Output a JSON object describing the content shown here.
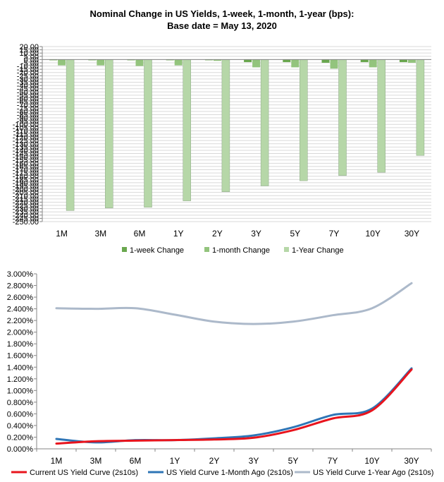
{
  "chart_data": [
    {
      "type": "bar",
      "title": "Nominal Change in US Yields, 1-week, 1-month, 1-year (bps):",
      "subtitle": "Base date = May 13, 2020",
      "categories": [
        "1M",
        "3M",
        "6M",
        "1Y",
        "2Y",
        "3Y",
        "5Y",
        "7Y",
        "10Y",
        "30Y"
      ],
      "ylim": [
        -250,
        20
      ],
      "ytick_step": 5,
      "ytick_format": "fixed2",
      "grid": true,
      "legend_position": "bottom",
      "series": [
        {
          "name": "1-week Change",
          "color": "#6aa84f",
          "values": [
            -1,
            -1,
            -1,
            -1,
            -1,
            -4,
            -4,
            -5,
            -4,
            -4
          ]
        },
        {
          "name": "1-month Change",
          "color": "#93c47d",
          "values": [
            -9,
            -9,
            -10,
            -9,
            -2,
            -12,
            -12,
            -14,
            -12,
            -5
          ]
        },
        {
          "name": "1-Year Change",
          "color": "#b6d7a8",
          "values": [
            -233,
            -229,
            -228,
            -218,
            -204,
            -195,
            -187,
            -179,
            -174,
            -148
          ]
        }
      ]
    },
    {
      "type": "line",
      "categories": [
        "1M",
        "3M",
        "6M",
        "1Y",
        "2Y",
        "3Y",
        "5Y",
        "7Y",
        "10Y",
        "30Y"
      ],
      "ylim": [
        0,
        3.0
      ],
      "ytick_step": 0.2,
      "ytick_format": "percent3",
      "grid": false,
      "legend_position": "bottom",
      "series": [
        {
          "name": "Current US Yield Curve (2s10s)",
          "color": "#e8141d",
          "values": [
            0.09,
            0.13,
            0.14,
            0.15,
            0.16,
            0.19,
            0.32,
            0.52,
            0.66,
            1.36
          ]
        },
        {
          "name": "US Yield Curve 1-Month Ago (2s10s)",
          "color": "#2e75b6",
          "values": [
            0.17,
            0.11,
            0.15,
            0.15,
            0.18,
            0.23,
            0.37,
            0.58,
            0.69,
            1.38
          ]
        },
        {
          "name": "US Yield Curve 1-Year Ago (2s10s)",
          "color": "#acb9ca",
          "values": [
            2.41,
            2.4,
            2.41,
            2.3,
            2.18,
            2.14,
            2.18,
            2.29,
            2.41,
            2.84
          ]
        }
      ]
    }
  ]
}
